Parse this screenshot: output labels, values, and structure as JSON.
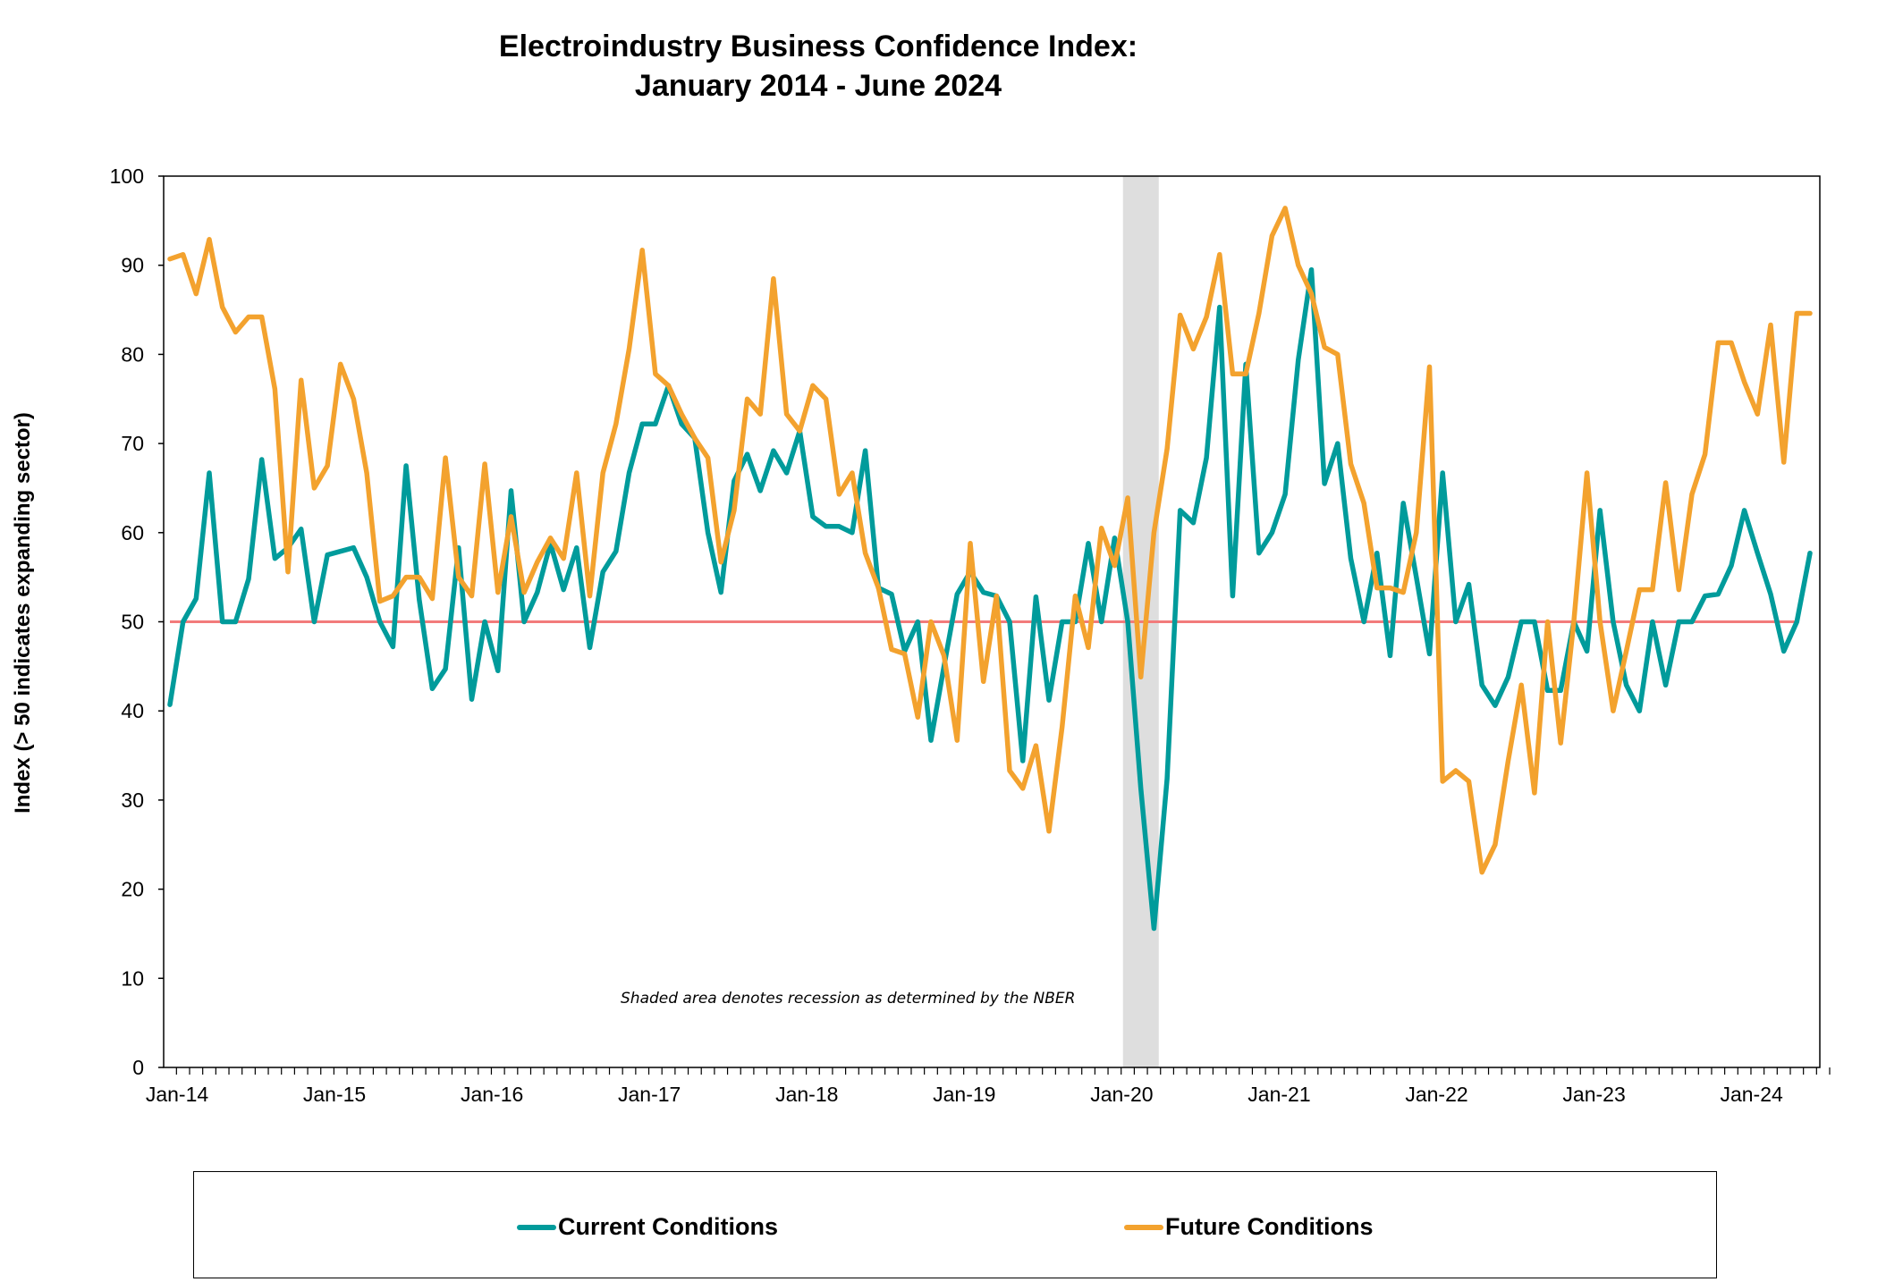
{
  "title_line1": "Electroindustry Business Confidence Index:",
  "title_line2": "January 2014 - June 2024",
  "chart_data": {
    "type": "line",
    "title": "Electroindustry Business Confidence Index: January 2014 - June 2024",
    "xlabel": "",
    "ylabel": "Index (> 50 indicates expanding sector)",
    "ylim": [
      0,
      100
    ],
    "yticks": [
      0,
      10,
      20,
      30,
      40,
      50,
      60,
      70,
      80,
      90,
      100
    ],
    "x_start": "Jan-14",
    "x_end": "Jun-24",
    "frequency": "monthly",
    "xtick_labels": [
      "Jan-14",
      "Jan-15",
      "Jan-16",
      "Jan-17",
      "Jan-18",
      "Jan-19",
      "Jan-20",
      "Jan-21",
      "Jan-22",
      "Jan-23",
      "Jan-24"
    ],
    "grid": false,
    "reference_line": {
      "value": 50,
      "color": "#f27b7b",
      "end": "May-24"
    },
    "recession_shading": {
      "start": "Feb-20",
      "end": "Apr-20",
      "color": "#dedede"
    },
    "annotation": "Shaded area denotes recession as determined by the NBER",
    "legend": {
      "placement": "bottom",
      "entries": [
        "Current Conditions",
        "Future Conditions"
      ]
    },
    "series": [
      {
        "name": "Current Conditions",
        "color": "#009b9b",
        "values": [
          40.7,
          50,
          52.6,
          66.7,
          50,
          50,
          54.8,
          68.2,
          57.1,
          58.3,
          60.4,
          50,
          57.5,
          57.9,
          58.3,
          55,
          50,
          47.2,
          67.5,
          52.5,
          42.5,
          44.7,
          58.3,
          41.3,
          50,
          44.5,
          64.7,
          50,
          53.3,
          58.8,
          53.6,
          58.3,
          47.1,
          55.6,
          57.9,
          66.7,
          72.2,
          72.2,
          76.5,
          72.2,
          70.6,
          60,
          53.3,
          65.8,
          68.8,
          64.7,
          69.2,
          66.7,
          71.4,
          61.8,
          60.7,
          60.7,
          60,
          69.2,
          53.8,
          53.1,
          46.7,
          50,
          36.7,
          45,
          53.1,
          55.6,
          53.3,
          52.9,
          50,
          34.4,
          52.8,
          41.2,
          50,
          50,
          58.8,
          50,
          59.4,
          50,
          31.3,
          15.6,
          32.4,
          62.5,
          61.1,
          68.4,
          85.3,
          52.9,
          78.9,
          57.7,
          60,
          64.3,
          79.4,
          89.5,
          65.5,
          70,
          57.1,
          50,
          57.7,
          46.2,
          63.3,
          55,
          46.4,
          66.7,
          50,
          54.2,
          42.9,
          40.6,
          43.8,
          50,
          50,
          42.3,
          42.3,
          50,
          46.7,
          62.5,
          50,
          42.9,
          40,
          50,
          42.9,
          50,
          50,
          52.9,
          53.1,
          56.3,
          62.5,
          57.7,
          53.1,
          46.7,
          50,
          57.7
        ]
      },
      {
        "name": "Future Conditions",
        "color": "#f3a22e",
        "values": [
          90.7,
          91.2,
          86.8,
          92.9,
          85.3,
          82.5,
          84.2,
          84.2,
          76.1,
          55.6,
          77.1,
          65,
          67.5,
          78.9,
          75,
          66.7,
          52.3,
          52.9,
          55,
          55,
          52.6,
          68.4,
          55,
          52.9,
          67.7,
          53.3,
          61.8,
          53.3,
          56.7,
          59.4,
          57.1,
          66.7,
          52.9,
          66.7,
          72.2,
          80.6,
          91.7,
          77.8,
          76.5,
          73.3,
          70.6,
          68.4,
          56.7,
          62.5,
          75,
          73.3,
          88.5,
          73.3,
          71.4,
          76.5,
          75,
          64.3,
          66.7,
          57.7,
          53.8,
          46.9,
          46.4,
          39.3,
          50,
          46.2,
          36.7,
          58.8,
          43.3,
          52.9,
          33.3,
          31.3,
          36.1,
          26.5,
          38.2,
          52.9,
          47.1,
          60.5,
          56.3,
          63.9,
          43.8,
          60,
          69.4,
          84.4,
          80.6,
          84.2,
          91.2,
          77.8,
          77.8,
          84.6,
          93.3,
          96.4,
          90,
          86.8,
          80.8,
          80,
          67.7,
          63.3,
          53.8,
          53.8,
          53.3,
          60,
          78.6,
          32.1,
          33.3,
          32.1,
          21.9,
          25,
          34.4,
          42.9,
          30.8,
          50,
          36.4,
          50,
          66.7,
          50,
          40,
          46.7,
          53.6,
          53.6,
          65.6,
          53.6,
          64.3,
          68.8,
          81.3,
          81.3,
          76.9,
          73.3,
          83.3,
          67.9,
          84.6,
          84.6
        ]
      }
    ]
  }
}
